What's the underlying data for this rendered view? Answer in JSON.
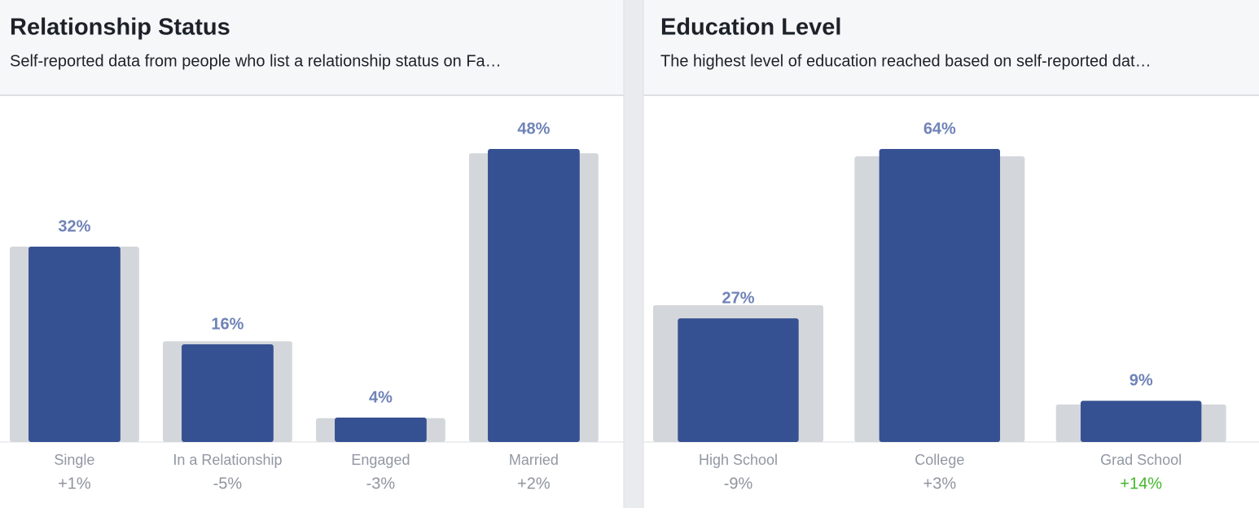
{
  "chart_data": [
    {
      "type": "bar",
      "title": "Relationship Status",
      "subtitle": "Self-reported data from people who list a relationship status on Fa…",
      "categories": [
        "Single",
        "In a Relationship",
        "Engaged",
        "Married"
      ],
      "values": [
        32,
        16,
        4,
        48
      ],
      "value_labels": [
        "32%",
        "16%",
        "4%",
        "48%"
      ],
      "color": "#365192",
      "comparison_values": [
        32,
        16.5,
        3.9,
        47.3
      ],
      "comparison_color": "#d3d6db",
      "changes": [
        1,
        -5,
        -3,
        2
      ],
      "change_labels": [
        "+1%",
        "-5%",
        "-3%",
        "+2%"
      ],
      "change_colors": [
        "#90949c",
        "#90949c",
        "#90949c",
        "#90949c"
      ]
    },
    {
      "type": "bar",
      "title": "Education Level",
      "subtitle": "The highest level of education reached based on self-reported dat…",
      "categories": [
        "High School",
        "College",
        "Grad School"
      ],
      "values": [
        27,
        64,
        9
      ],
      "value_labels": [
        "27%",
        "64%",
        "9%"
      ],
      "color": "#365192",
      "comparison_values": [
        29.9,
        62.4,
        8.2
      ],
      "comparison_color": "#d3d6db",
      "changes": [
        -9,
        3,
        14
      ],
      "change_labels": [
        "-9%",
        "+3%",
        "+14%"
      ],
      "change_colors": [
        "#90949c",
        "#90949c",
        "#42b72a"
      ]
    }
  ]
}
